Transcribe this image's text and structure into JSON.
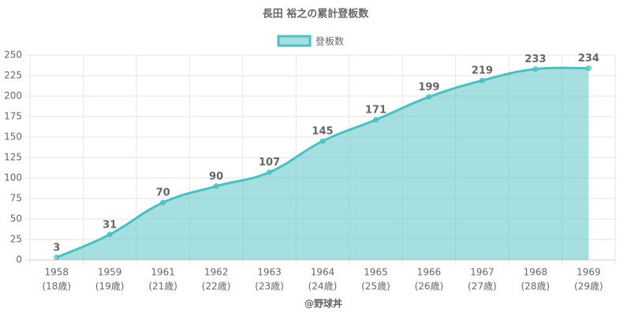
{
  "chart_data": {
    "type": "line",
    "title": "長田 裕之の累計登板数",
    "x_label": "@野球丼",
    "categories": [
      [
        "1958",
        "(18歳)"
      ],
      [
        "1959",
        "(19歳)"
      ],
      [
        "1961",
        "(21歳)"
      ],
      [
        "1962",
        "(22歳)"
      ],
      [
        "1963",
        "(23歳)"
      ],
      [
        "1964",
        "(24歳)"
      ],
      [
        "1965",
        "(25歳)"
      ],
      [
        "1966",
        "(26歳)"
      ],
      [
        "1967",
        "(27歳)"
      ],
      [
        "1968",
        "(28歳)"
      ],
      [
        "1969",
        "(29歳)"
      ]
    ],
    "series": [
      {
        "name": "登板数",
        "color": "#4bc0c0",
        "values": [
          3,
          31,
          70,
          90,
          107,
          145,
          171,
          199,
          219,
          233,
          234
        ]
      }
    ],
    "ylim": [
      0,
      250
    ],
    "yticks": [
      0,
      25,
      50,
      75,
      100,
      125,
      150,
      175,
      200,
      225,
      250
    ],
    "grid": true,
    "fill": true,
    "legend": "top"
  }
}
